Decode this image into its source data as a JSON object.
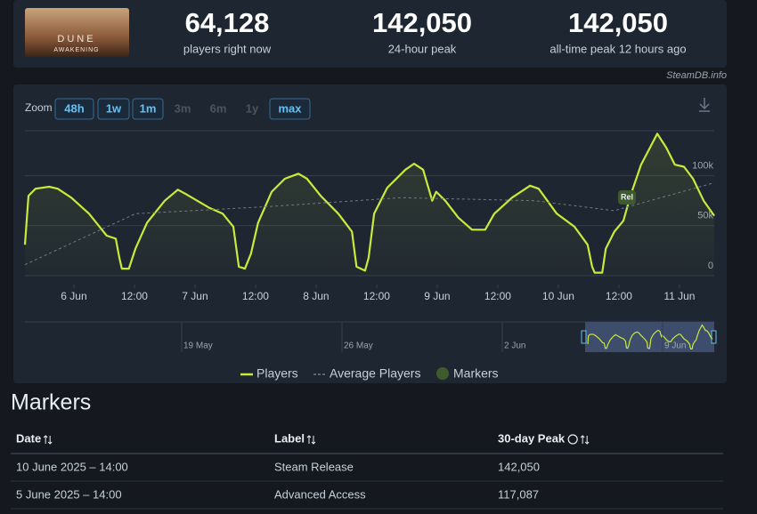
{
  "header": {
    "logo": [
      "DUNE",
      "AWAKENING"
    ],
    "stats": [
      {
        "value": "64,128",
        "label": "players right now"
      },
      {
        "value": "142,050",
        "label": "24-hour peak"
      },
      {
        "value": "142,050",
        "label": "all-time peak 12 hours ago"
      }
    ]
  },
  "source": "SteamDB.info",
  "zoom": {
    "label": "Zoom",
    "options": [
      {
        "text": "48h",
        "enabled": true
      },
      {
        "text": "1w",
        "enabled": true
      },
      {
        "text": "1m",
        "enabled": true
      },
      {
        "text": "3m",
        "enabled": false
      },
      {
        "text": "6m",
        "enabled": false
      },
      {
        "text": "1y",
        "enabled": false
      },
      {
        "text": "max",
        "enabled": true
      }
    ]
  },
  "chart_data": {
    "type": "line",
    "xlim": [
      -9.7,
      126.9
    ],
    "xticks": [
      {
        "value": 0,
        "label": "6 Jun"
      },
      {
        "value": 12,
        "label": "12:00"
      },
      {
        "value": 24,
        "label": "7 Jun"
      },
      {
        "value": 36,
        "label": "12:00"
      },
      {
        "value": 48,
        "label": "8 Jun"
      },
      {
        "value": 60,
        "label": "12:00"
      },
      {
        "value": 72,
        "label": "9 Jun"
      },
      {
        "value": 84,
        "label": "12:00"
      },
      {
        "value": 96,
        "label": "10 Jun"
      },
      {
        "value": 108,
        "label": "12:00"
      },
      {
        "value": 120,
        "label": "11 Jun"
      }
    ],
    "ylim": [
      0,
      145000
    ],
    "yticks": [
      0,
      {
        "value": 50000,
        "label": "50k"
      },
      {
        "value": 100000,
        "label": "100k"
      }
    ],
    "grid": true,
    "series": [
      {
        "name": "Players",
        "color": "#c8ea3c",
        "x": [
          -9.7,
          -9.0,
          -7.6,
          -4.9,
          -3.2,
          -0.5,
          3.0,
          6.5,
          8.3,
          9.0,
          9.5,
          10.9,
          12.2,
          14.5,
          18.0,
          20.6,
          22.4,
          26.8,
          29.5,
          31.6,
          32.7,
          33.9,
          35.1,
          36.5,
          39.2,
          41.8,
          44.5,
          46.2,
          48.9,
          52.4,
          55.1,
          56.0,
          57.7,
          58.4,
          59.5,
          62.1,
          65.7,
          67.4,
          69.2,
          71.0,
          71.8,
          73.6,
          76.2,
          78.9,
          81.5,
          83.3,
          86.8,
          90.4,
          92.1,
          95.7,
          99.2,
          101.8,
          102.7,
          103.2,
          104.7,
          105.4,
          107.1,
          108.9,
          110.3,
          112.4,
          115.6,
          117.4,
          119.1,
          120.9,
          122.7,
          124.8,
          126.9
        ],
        "values": [
          31000,
          80000,
          87000,
          89000,
          87000,
          78000,
          62000,
          40000,
          37000,
          18000,
          7000,
          7000,
          27000,
          53000,
          75000,
          86000,
          81000,
          68000,
          62000,
          49000,
          9000,
          7000,
          22000,
          53000,
          84000,
          97000,
          102000,
          97000,
          80000,
          62000,
          44000,
          9000,
          5000,
          18000,
          62000,
          88000,
          106000,
          112000,
          106000,
          75000,
          84000,
          75000,
          58000,
          46000,
          46000,
          62000,
          78000,
          90000,
          87000,
          62000,
          49000,
          31000,
          9000,
          3000,
          3000,
          27000,
          44000,
          55000,
          80000,
          111000,
          142000,
          128000,
          111000,
          109000,
          97000,
          75000,
          60000
        ]
      },
      {
        "name": "Average Players",
        "color": "#6f7b88",
        "dashed": true,
        "x": [
          -9.7,
          12.2,
          38.3,
          64.8,
          91.3,
          107.1,
          126.9
        ],
        "values": [
          11000,
          62000,
          69000,
          78000,
          75000,
          65000,
          93000
        ]
      }
    ],
    "markers": {
      "name": "Markers",
      "color": "#3f5a2c",
      "points": [
        {
          "label": "Rel",
          "x": 109.6
        }
      ]
    }
  },
  "navigator_labels": [
    "19 May",
    "26 May",
    "2 Jun",
    "9 Jun"
  ],
  "markers_table": {
    "title": "Markers",
    "columns": [
      "Date",
      "Label",
      "30-day Peak"
    ],
    "rows": [
      [
        "10 June 2025 – 14:00",
        "Steam Release",
        "142,050"
      ],
      [
        "5 June 2025 – 14:00",
        "Advanced Access",
        "117,087"
      ]
    ]
  }
}
